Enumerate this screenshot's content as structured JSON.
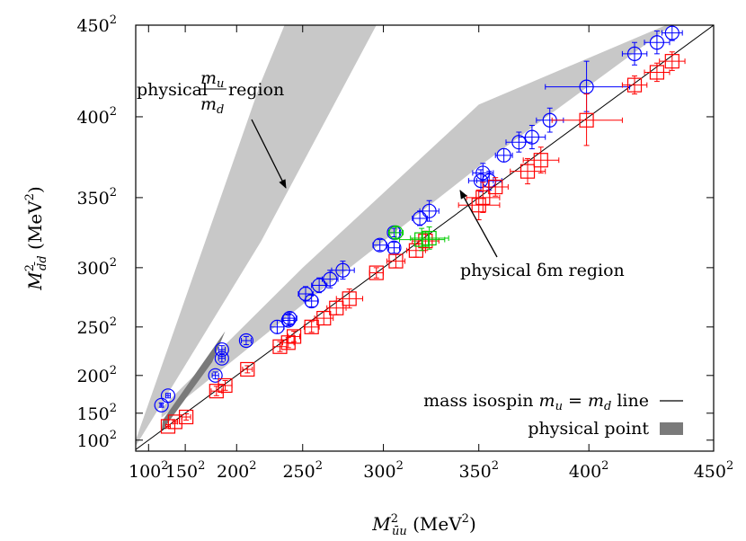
{
  "chart_data": {
    "type": "scatter",
    "title": "",
    "xlabel": "M²_{ūu} (MeV²)",
    "ylabel": "M²_{d̄d} (MeV²)",
    "xlabel_parts": {
      "main": "M",
      "sup": "2",
      "sub": "ūu",
      "unit": " (MeV",
      "unit_sup": "2",
      "close": ")"
    },
    "ylabel_parts": {
      "main": "M",
      "sup": "2",
      "sub": "d̄d",
      "unit": " (MeV",
      "unit_sup": "2",
      "close": ")"
    },
    "scale": "quadratic (axis linear in M², ticks labeled in MeV)",
    "xlim": [
      75,
      450
    ],
    "ylim": [
      70,
      450
    ],
    "x_ticks": [
      {
        "value": 100,
        "label": "100",
        "exp": "2"
      },
      {
        "value": 150,
        "label": "150",
        "exp": "2"
      },
      {
        "value": 200,
        "label": "200",
        "exp": "2"
      },
      {
        "value": 250,
        "label": "250",
        "exp": "2"
      },
      {
        "value": 300,
        "label": "300",
        "exp": "2"
      },
      {
        "value": 350,
        "label": "350",
        "exp": "2"
      },
      {
        "value": 400,
        "label": "400",
        "exp": "2"
      },
      {
        "value": 450,
        "label": "450",
        "exp": "2"
      }
    ],
    "y_ticks": [
      {
        "value": 100,
        "label": "100",
        "exp": "2"
      },
      {
        "value": 150,
        "label": "150",
        "exp": "2"
      },
      {
        "value": 200,
        "label": "200",
        "exp": "2"
      },
      {
        "value": 250,
        "label": "250",
        "exp": "2"
      },
      {
        "value": 300,
        "label": "300",
        "exp": "2"
      },
      {
        "value": 350,
        "label": "350",
        "exp": "2"
      },
      {
        "value": 400,
        "label": "400",
        "exp": "2"
      },
      {
        "value": 450,
        "label": "450",
        "exp": "2"
      }
    ],
    "bands": [
      {
        "name": "physical m_u/m_d region",
        "color": "#c8c8c8",
        "lower": [
          [
            75,
            85
          ],
          [
            220,
            320
          ],
          [
            350,
            540
          ]
        ],
        "upper": [
          [
            75,
            100
          ],
          [
            220,
            420
          ],
          [
            300,
            560
          ]
        ]
      },
      {
        "name": "physical δm region",
        "color": "#c8c8c8",
        "lower": [
          [
            120,
            143
          ],
          [
            250,
            270
          ],
          [
            350,
            370
          ],
          [
            437,
            453
          ]
        ],
        "upper": [
          [
            120,
            158
          ],
          [
            250,
            300
          ],
          [
            350,
            407
          ],
          [
            437,
            453
          ]
        ]
      },
      {
        "name": "physical point",
        "color": "#7a7a7a",
        "polygon": [
          [
            120,
            118
          ],
          [
            122,
            139
          ],
          [
            190,
            246
          ],
          [
            178,
            215
          ]
        ]
      }
    ],
    "diagonal": {
      "name": "mass isospin m_u = m_d line",
      "from": [
        75,
        75
      ],
      "to": [
        450,
        450
      ],
      "color": "#000000"
    },
    "series": [
      {
        "marker": "circle",
        "color": "#0000ff",
        "points": [
          [
            120,
            162,
            2,
            3
          ],
          [
            129,
            175,
            3,
            3
          ],
          [
            181,
            200,
            3,
            4
          ],
          [
            187,
            219,
            3,
            4
          ],
          [
            187,
            228,
            3,
            4
          ],
          [
            208,
            237,
            4,
            4
          ],
          [
            232,
            250,
            5,
            6
          ],
          [
            240,
            256,
            4,
            5
          ],
          [
            241,
            258,
            5,
            5
          ],
          [
            252,
            279,
            5,
            6
          ],
          [
            256,
            273,
            4,
            5
          ],
          [
            261,
            286,
            5,
            6
          ],
          [
            268,
            291,
            5,
            7
          ],
          [
            276,
            298,
            7,
            7
          ],
          [
            298,
            317,
            4,
            4
          ],
          [
            306,
            315,
            3,
            4
          ],
          [
            306,
            326,
            3,
            3
          ],
          [
            320,
            336,
            4,
            5
          ],
          [
            325,
            341,
            5,
            7
          ],
          [
            351,
            361,
            6,
            7
          ],
          [
            352,
            366,
            5,
            6
          ],
          [
            355,
            361,
            6,
            6
          ],
          [
            362,
            377,
            4,
            4
          ],
          [
            369,
            385,
            6,
            6
          ],
          [
            375,
            388,
            6,
            7
          ],
          [
            383,
            398,
            6,
            7
          ],
          [
            399,
            417,
            18,
            14
          ],
          [
            419,
            435,
            5,
            6
          ],
          [
            428,
            441,
            5,
            6
          ],
          [
            434,
            446,
            4,
            4
          ]
        ]
      },
      {
        "marker": "square",
        "color": "#ff0000",
        "points": [
          [
            129,
            128,
            3,
            3
          ],
          [
            138,
            136,
            3,
            3
          ],
          [
            151,
            144,
            5,
            5
          ],
          [
            182,
            181,
            5,
            6
          ],
          [
            190,
            188,
            6,
            6
          ],
          [
            209,
            207,
            4,
            4
          ],
          [
            234,
            231,
            5,
            5
          ],
          [
            240,
            235,
            4,
            5
          ],
          [
            244,
            241,
            4,
            5
          ],
          [
            256,
            250,
            5,
            5
          ],
          [
            264,
            258,
            6,
            6
          ],
          [
            272,
            267,
            6,
            6
          ],
          [
            280,
            275,
            8,
            8
          ],
          [
            296,
            296,
            4,
            4
          ],
          [
            307,
            305,
            5,
            5
          ],
          [
            318,
            313,
            5,
            5
          ],
          [
            323,
            320,
            7,
            7
          ],
          [
            350,
            345,
            10,
            10
          ],
          [
            352,
            350,
            8,
            10
          ],
          [
            358,
            357,
            6,
            6
          ],
          [
            373,
            367,
            8,
            8
          ],
          [
            379,
            374,
            8,
            8
          ],
          [
            399,
            398,
            15,
            15
          ],
          [
            419,
            418,
            5,
            5
          ],
          [
            428,
            425,
            5,
            5
          ],
          [
            434,
            431,
            5,
            5
          ]
        ]
      },
      {
        "marker": "circle",
        "color": "#00cc00",
        "points": [
          [
            307,
            326,
            4,
            4
          ]
        ]
      },
      {
        "marker": "square",
        "color": "#00cc00",
        "points": [
          [
            321,
            321,
            12,
            8
          ],
          [
            325,
            322,
            10,
            8
          ]
        ]
      }
    ],
    "annotations": [
      {
        "text_pre": "physical ",
        "frac_num": "m",
        "frac_num_sub": "u",
        "frac_den": "m",
        "frac_den_sub": "d",
        "text_post": " region"
      },
      {
        "text": "physical δm region"
      }
    ],
    "legend": {
      "position": "bottom-right",
      "entries": [
        {
          "label": "mass isospin m_u = m_d line",
          "label_pre": "mass isospin ",
          "label_mu": "m",
          "label_mu_sub": "u",
          "label_eq": " = ",
          "label_md": "m",
          "label_md_sub": "d",
          "label_post": " line",
          "swatch": "line",
          "color": "#000000"
        },
        {
          "label": "physical point",
          "swatch": "box",
          "color": "#7a7a7a"
        }
      ]
    }
  }
}
